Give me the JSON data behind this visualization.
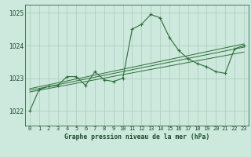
{
  "title": "Graphe pression niveau de la mer (hPa)",
  "bg_color": "#cde8dc",
  "grid_color": "#a8ccbb",
  "line_color": "#2d6e3a",
  "text_color": "#1a4a2a",
  "xlim": [
    -0.5,
    23.5
  ],
  "ylim": [
    1021.55,
    1025.25
  ],
  "yticks": [
    1022,
    1023,
    1024,
    1025
  ],
  "xticks": [
    0,
    1,
    2,
    3,
    4,
    5,
    6,
    7,
    8,
    9,
    10,
    11,
    12,
    13,
    14,
    15,
    16,
    17,
    18,
    19,
    20,
    21,
    22,
    23
  ],
  "series1_x": [
    0,
    1,
    2,
    3,
    4,
    5,
    6,
    7,
    8,
    9,
    10,
    11,
    12,
    13,
    14,
    15,
    16,
    17,
    18,
    19,
    20,
    21,
    22,
    23
  ],
  "series1_y": [
    1022.0,
    1022.65,
    1022.75,
    1022.78,
    1023.05,
    1023.05,
    1022.78,
    1023.2,
    1022.95,
    1022.9,
    1023.0,
    1024.5,
    1024.65,
    1024.95,
    1024.85,
    1024.25,
    1023.85,
    1023.6,
    1023.45,
    1023.35,
    1023.2,
    1023.15,
    1023.9,
    1024.0
  ],
  "trend_lines": [
    {
      "x": [
        0,
        23
      ],
      "y": [
        1022.58,
        1023.8
      ]
    },
    {
      "x": [
        0,
        23
      ],
      "y": [
        1022.63,
        1023.95
      ]
    },
    {
      "x": [
        0,
        23
      ],
      "y": [
        1022.68,
        1024.05
      ]
    }
  ]
}
